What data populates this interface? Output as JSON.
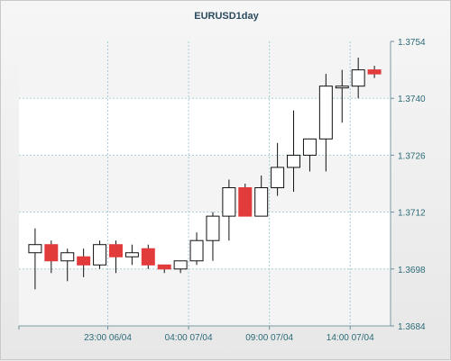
{
  "chart_data": {
    "type": "candlestick",
    "title": "EURUSD1day",
    "xlabel": "",
    "ylabel": "",
    "ylim": [
      1.3684,
      1.3754
    ],
    "y_ticks": [
      "1.3754",
      "1.3740",
      "1.3726",
      "1.3712",
      "1.3698",
      "1.3684"
    ],
    "x_tick_labels": [
      "23:00 06/04",
      "04:00 07/04",
      "09:00 07/04",
      "14:00 07/04"
    ],
    "x_tick_positions": [
      5.5,
      10.5,
      15.5,
      20.5
    ],
    "grid": true,
    "up_color": "#ffffff",
    "down_color": "#e23b3b",
    "candles": [
      {
        "o": 1.3702,
        "h": 1.3708,
        "l": 1.3693,
        "c": 1.3704
      },
      {
        "o": 1.3704,
        "h": 1.3705,
        "l": 1.3697,
        "c": 1.37
      },
      {
        "o": 1.37,
        "h": 1.3703,
        "l": 1.3695,
        "c": 1.3702
      },
      {
        "o": 1.3701,
        "h": 1.3703,
        "l": 1.3696,
        "c": 1.3699
      },
      {
        "o": 1.3699,
        "h": 1.3705,
        "l": 1.3698,
        "c": 1.3704
      },
      {
        "o": 1.3704,
        "h": 1.3705,
        "l": 1.3697,
        "c": 1.3701
      },
      {
        "o": 1.3701,
        "h": 1.3704,
        "l": 1.3699,
        "c": 1.3702
      },
      {
        "o": 1.3703,
        "h": 1.3704,
        "l": 1.3698,
        "c": 1.3699
      },
      {
        "o": 1.3699,
        "h": 1.3699,
        "l": 1.3697,
        "c": 1.3698
      },
      {
        "o": 1.3698,
        "h": 1.37,
        "l": 1.3697,
        "c": 1.37
      },
      {
        "o": 1.37,
        "h": 1.3707,
        "l": 1.3699,
        "c": 1.3705
      },
      {
        "o": 1.3705,
        "h": 1.3712,
        "l": 1.37,
        "c": 1.3711
      },
      {
        "o": 1.3711,
        "h": 1.372,
        "l": 1.3705,
        "c": 1.3718
      },
      {
        "o": 1.3718,
        "h": 1.3719,
        "l": 1.3711,
        "c": 1.3711
      },
      {
        "o": 1.3711,
        "h": 1.3721,
        "l": 1.3711,
        "c": 1.3718
      },
      {
        "o": 1.3718,
        "h": 1.3729,
        "l": 1.3716,
        "c": 1.3723
      },
      {
        "o": 1.3723,
        "h": 1.3737,
        "l": 1.3717,
        "c": 1.3726
      },
      {
        "o": 1.3726,
        "h": 1.373,
        "l": 1.3722,
        "c": 1.373
      },
      {
        "o": 1.373,
        "h": 1.3746,
        "l": 1.3722,
        "c": 1.3743
      },
      {
        "o": 1.3743,
        "h": 1.3747,
        "l": 1.3734,
        "c": 1.3743
      },
      {
        "o": 1.3743,
        "h": 1.375,
        "l": 1.374,
        "c": 1.3747
      },
      {
        "o": 1.3747,
        "h": 1.3748,
        "l": 1.3745,
        "c": 1.3746
      }
    ]
  }
}
